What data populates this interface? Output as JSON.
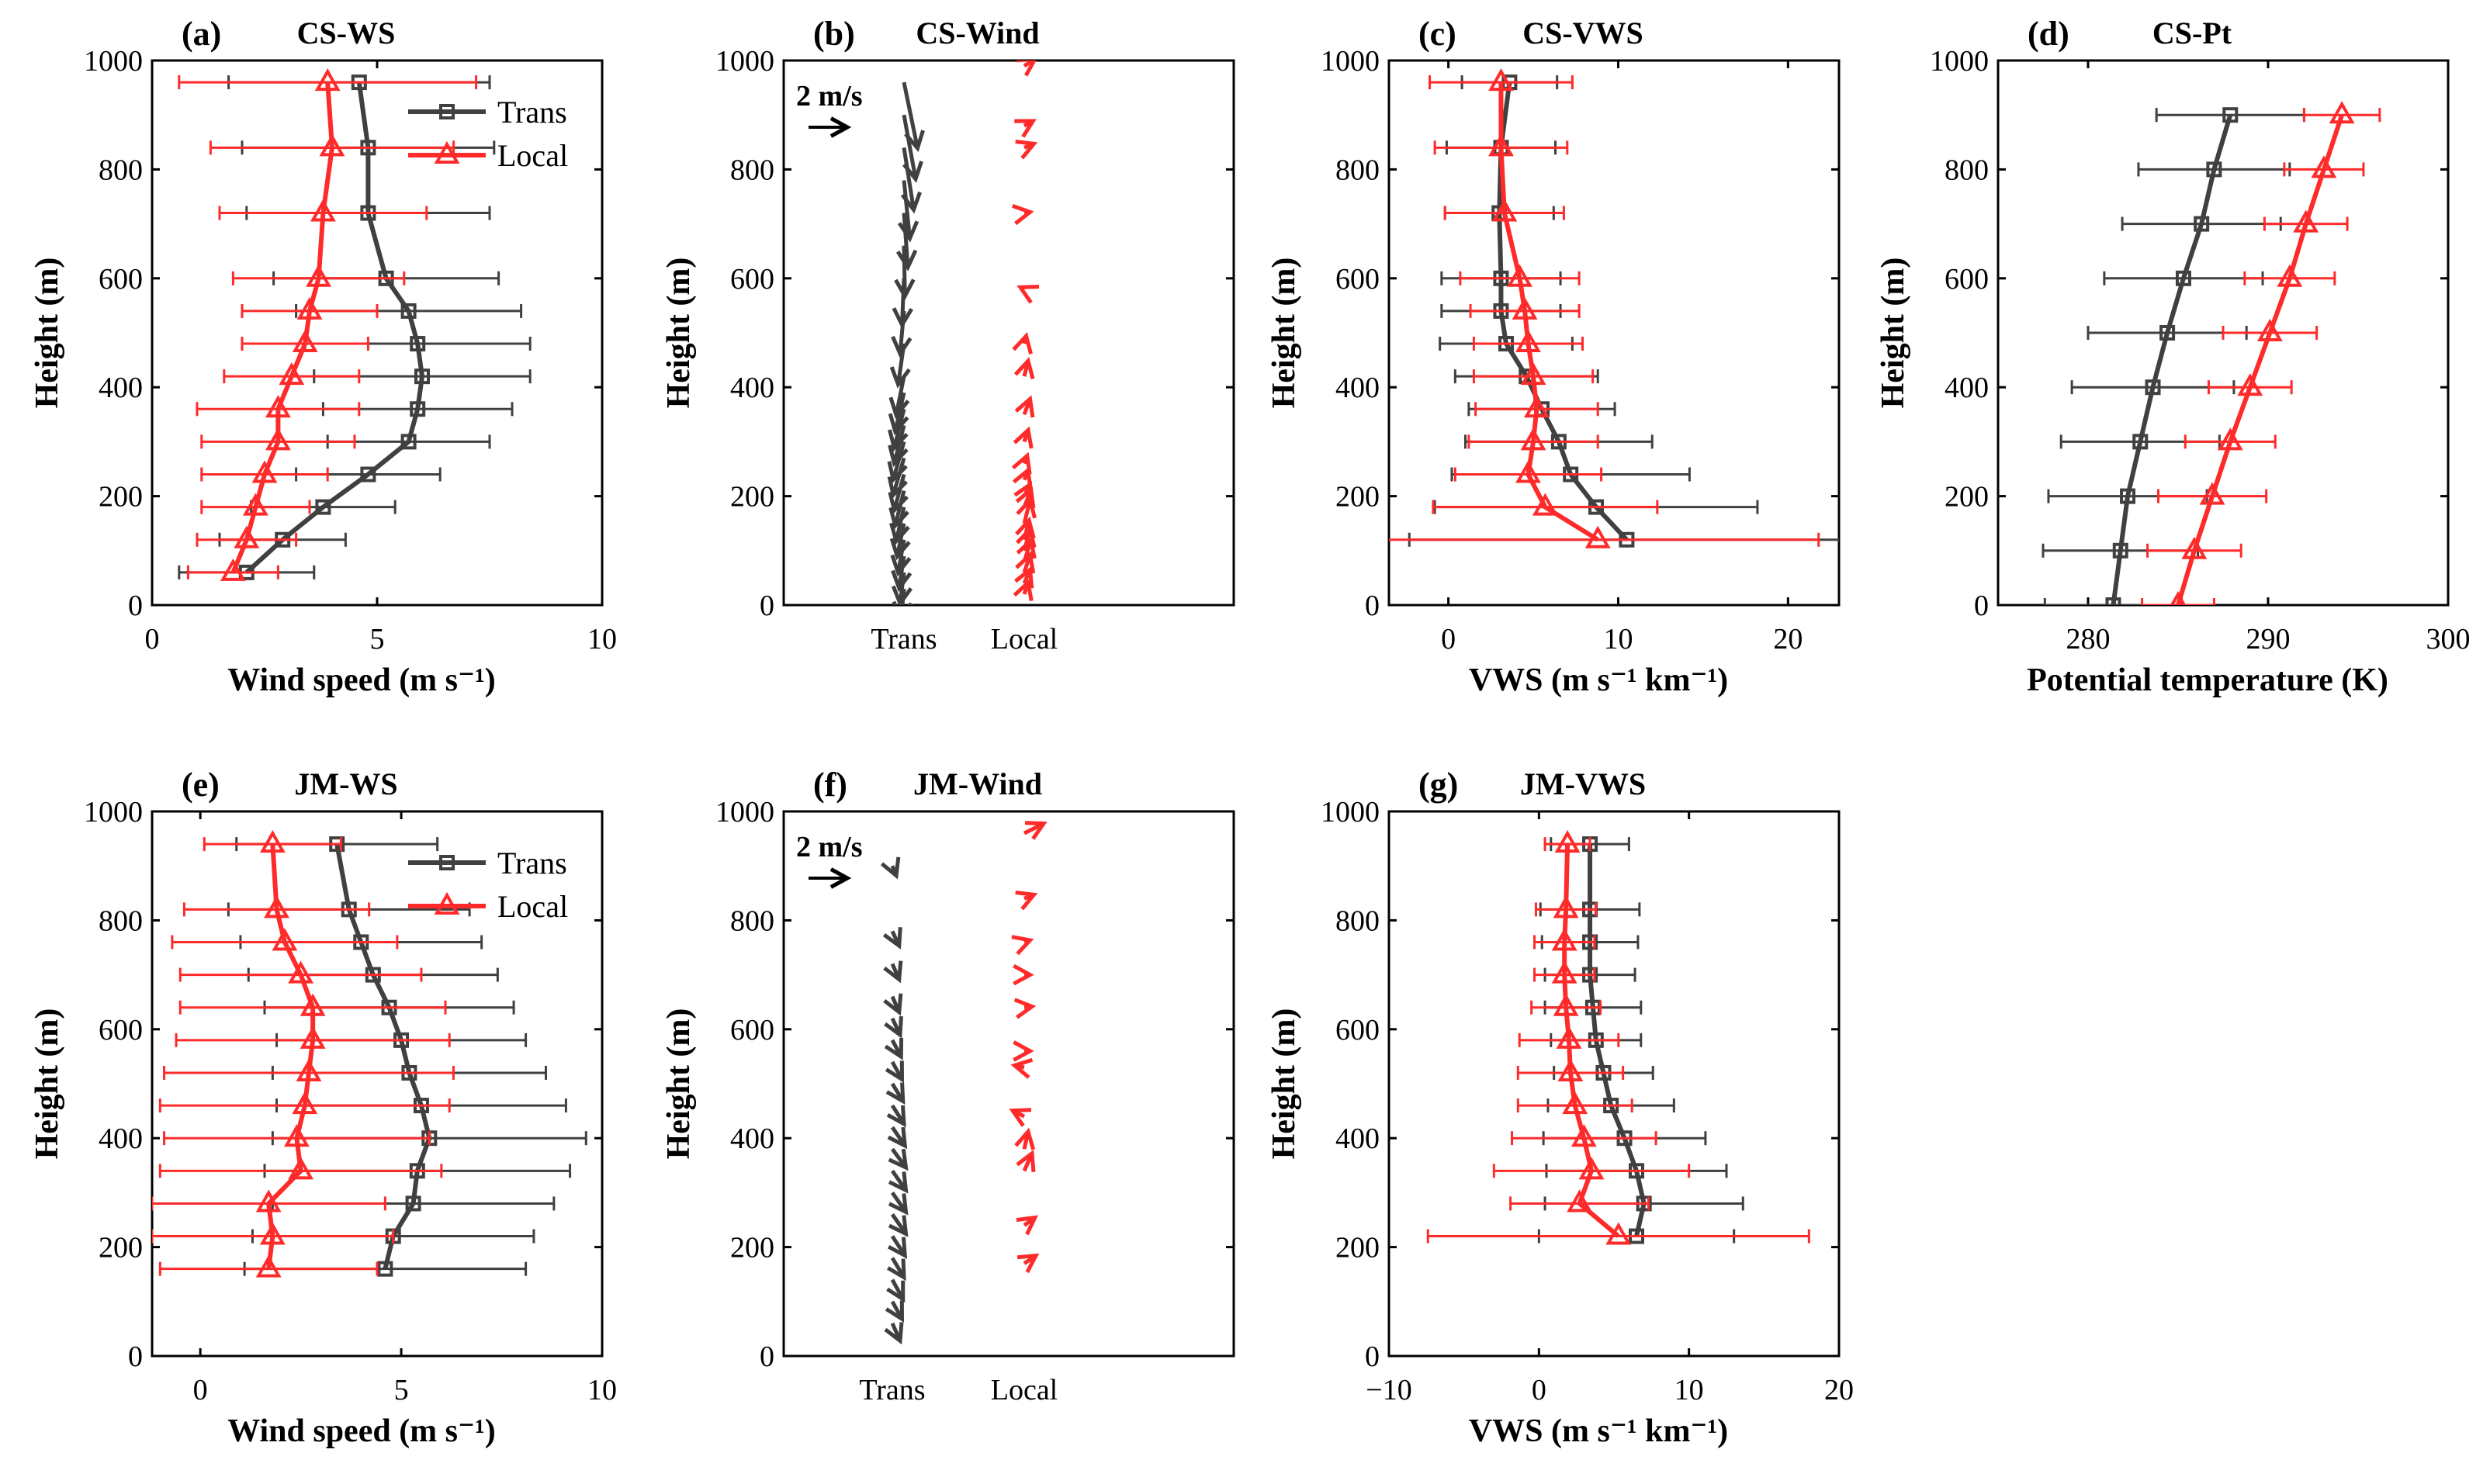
{
  "colors": {
    "trans": "#404040",
    "local": "#ff2a2a",
    "axis": "#000000"
  },
  "series_names": {
    "trans": "Trans",
    "local": "Local"
  },
  "chart_data": [
    {
      "id": "a",
      "type": "line",
      "letter": "(a)",
      "title": "CS-WS",
      "xlabel": "Wind speed (m s⁻¹)",
      "ylabel": "Height (m)",
      "xlim": [
        0,
        10
      ],
      "ylim": [
        0,
        1000
      ],
      "xticks": [
        0,
        5,
        10
      ],
      "xticklabels": [
        "0",
        "5",
        "10"
      ],
      "yticks": [
        0,
        200,
        400,
        600,
        800,
        1000
      ],
      "yticklabels": [
        "0",
        "200",
        "400",
        "600",
        "800",
        "1000"
      ],
      "legend": true,
      "series": [
        {
          "key": "trans",
          "heights": [
            60,
            120,
            180,
            240,
            300,
            360,
            420,
            480,
            540,
            600,
            720,
            840,
            960
          ],
          "values": [
            2.1,
            2.9,
            3.8,
            4.8,
            5.7,
            5.9,
            6.0,
            5.9,
            5.7,
            5.2,
            4.8,
            4.8,
            4.6
          ],
          "err": [
            1.5,
            1.4,
            1.6,
            1.6,
            1.8,
            2.1,
            2.4,
            2.5,
            2.5,
            2.5,
            2.7,
            2.8,
            2.9
          ]
        },
        {
          "key": "local",
          "heights": [
            60,
            120,
            180,
            240,
            300,
            360,
            420,
            480,
            540,
            600,
            720,
            840,
            960
          ],
          "values": [
            1.8,
            2.1,
            2.3,
            2.5,
            2.8,
            2.8,
            3.1,
            3.4,
            3.5,
            3.7,
            3.8,
            4.0,
            3.9
          ],
          "err": [
            1.0,
            1.1,
            1.2,
            1.4,
            1.7,
            1.8,
            1.5,
            1.4,
            1.5,
            1.9,
            2.3,
            2.7,
            3.3
          ]
        }
      ]
    },
    {
      "id": "b",
      "type": "barbs",
      "letter": "(b)",
      "title": "CS-Wind",
      "ylabel": "Height (m)",
      "ylim": [
        0,
        1000
      ],
      "yticks": [
        0,
        200,
        400,
        600,
        800,
        1000
      ],
      "yticklabels": [
        "0",
        "200",
        "400",
        "600",
        "800",
        "1000"
      ],
      "columns": [
        "Trans",
        "Local"
      ],
      "scale_label": "2 m/s",
      "series": [
        {
          "key": "trans",
          "heights": [
            0,
            30,
            60,
            90,
            120,
            150,
            180,
            210,
            240,
            270,
            300,
            330,
            360,
            390,
            420,
            480,
            540,
            600,
            660,
            720,
            780,
            840,
            900,
            960
          ],
          "u": [
            -0.1,
            -0.15,
            -0.2,
            -0.25,
            -0.3,
            -0.35,
            -0.4,
            -0.45,
            -0.5,
            -0.55,
            -0.55,
            -0.5,
            -0.5,
            -0.45,
            -0.4,
            -0.3,
            -0.2,
            -0.1,
            0.05,
            0.2,
            0.3,
            0.5,
            0.6,
            0.7
          ],
          "v": [
            -1.5,
            -1.55,
            -1.6,
            -1.65,
            -1.7,
            -1.7,
            -1.75,
            -1.8,
            -1.85,
            -1.9,
            -1.95,
            -1.95,
            -2.0,
            -2.0,
            -2.0,
            -2.1,
            -2.2,
            -2.4,
            -2.6,
            -2.8,
            -3.0,
            -3.2,
            -3.3,
            -3.4
          ]
        },
        {
          "key": "local",
          "heights": [
            20,
            40,
            60,
            80,
            100,
            120,
            150,
            180,
            200,
            230,
            260,
            300,
            350,
            420,
            480,
            580,
            720,
            840,
            880,
            990
          ],
          "u": [
            0.2,
            0.3,
            0.3,
            0.35,
            0.3,
            0.25,
            0.3,
            0.35,
            0.3,
            0.2,
            0.15,
            0.2,
            0.3,
            0.2,
            0.1,
            -0.2,
            0.3,
            0.5,
            0.45,
            0.55
          ],
          "v": [
            0.6,
            0.7,
            0.9,
            1.1,
            1.1,
            1.0,
            1.2,
            0.9,
            0.6,
            0.5,
            0.4,
            0.6,
            0.8,
            0.8,
            0.4,
            0.1,
            0.05,
            0.2,
            0.25,
            0.35
          ]
        }
      ]
    },
    {
      "id": "c",
      "type": "line",
      "letter": "(c)",
      "title": "CS-VWS",
      "xlabel": "VWS (m s⁻¹ km⁻¹)",
      "ylabel": "Height (m)",
      "xlim": [
        -3.5,
        23
      ],
      "ylim": [
        0,
        1000
      ],
      "xticks": [
        0,
        10,
        20
      ],
      "xticklabels": [
        "0",
        "10",
        "20"
      ],
      "yticks": [
        0,
        200,
        400,
        600,
        800,
        1000
      ],
      "yticklabels": [
        "0",
        "200",
        "400",
        "600",
        "800",
        "1000"
      ],
      "legend": false,
      "series": [
        {
          "key": "trans",
          "heights": [
            120,
            180,
            240,
            300,
            360,
            420,
            480,
            540,
            600,
            720,
            840,
            960
          ],
          "values": [
            10.5,
            8.7,
            7.2,
            6.5,
            5.5,
            4.6,
            3.4,
            3.1,
            3.1,
            3.0,
            3.1,
            3.6
          ],
          "err": [
            12.8,
            9.5,
            7.0,
            5.5,
            4.3,
            4.2,
            3.9,
            3.5,
            3.5,
            3.2,
            3.2,
            2.8
          ]
        },
        {
          "key": "local",
          "heights": [
            120,
            180,
            240,
            300,
            360,
            420,
            480,
            540,
            600,
            720,
            840,
            960
          ],
          "values": [
            8.8,
            5.7,
            4.7,
            5.0,
            5.2,
            5.0,
            4.7,
            4.5,
            4.2,
            3.3,
            3.1,
            3.1
          ],
          "err": [
            13.0,
            6.6,
            4.3,
            3.8,
            3.6,
            3.5,
            3.2,
            3.2,
            3.5,
            3.5,
            3.9,
            4.2
          ]
        }
      ]
    },
    {
      "id": "d",
      "type": "line",
      "letter": "(d)",
      "title": "CS-Pt",
      "xlabel": "Potential temperature (K)",
      "ylabel": "Height (m)",
      "xlim": [
        275,
        300
      ],
      "ylim": [
        0,
        1000
      ],
      "xticks": [
        280,
        290,
        300
      ],
      "xticklabels": [
        "280",
        "290",
        "300"
      ],
      "yticks": [
        0,
        200,
        400,
        600,
        800,
        1000
      ],
      "yticklabels": [
        "0",
        "200",
        "400",
        "600",
        "800",
        "1000"
      ],
      "legend": false,
      "series": [
        {
          "key": "trans",
          "heights": [
            0,
            100,
            200,
            300,
            400,
            500,
            600,
            700,
            800,
            900
          ],
          "values": [
            281.4,
            281.8,
            282.2,
            282.9,
            283.6,
            284.4,
            285.3,
            286.3,
            287.0,
            287.9
          ],
          "err": [
            3.8,
            4.3,
            4.4,
            4.4,
            4.5,
            4.4,
            4.4,
            4.4,
            4.2,
            4.1
          ]
        },
        {
          "key": "local",
          "heights": [
            0,
            100,
            200,
            300,
            400,
            500,
            600,
            700,
            800,
            900
          ],
          "values": [
            285.0,
            285.9,
            286.9,
            287.9,
            289.0,
            290.1,
            291.2,
            292.1,
            293.1,
            294.1
          ],
          "err": [
            2.0,
            2.6,
            3.0,
            2.5,
            2.3,
            2.6,
            2.5,
            2.3,
            2.2,
            2.1
          ]
        }
      ]
    },
    {
      "id": "e",
      "type": "line",
      "letter": "(e)",
      "title": "JM-WS",
      "xlabel": "Wind speed (m s⁻¹)",
      "ylabel": "Height (m)",
      "xlim": [
        -1.2,
        10
      ],
      "ylim": [
        0,
        1000
      ],
      "xticks": [
        0,
        5,
        10
      ],
      "xticklabels": [
        "0",
        "5",
        "10"
      ],
      "yticks": [
        0,
        200,
        400,
        600,
        800,
        1000
      ],
      "yticklabels": [
        "0",
        "200",
        "400",
        "600",
        "800",
        "1000"
      ],
      "legend": true,
      "series": [
        {
          "key": "trans",
          "heights": [
            160,
            220,
            280,
            340,
            400,
            460,
            520,
            580,
            640,
            700,
            760,
            820,
            940
          ],
          "values": [
            4.6,
            4.8,
            5.3,
            5.4,
            5.7,
            5.5,
            5.2,
            5.0,
            4.7,
            4.3,
            4.0,
            3.7,
            3.4
          ],
          "err": [
            3.5,
            3.5,
            3.5,
            3.8,
            3.9,
            3.6,
            3.4,
            3.1,
            3.1,
            3.1,
            3.0,
            3.0,
            2.5
          ]
        },
        {
          "key": "local",
          "heights": [
            160,
            220,
            280,
            340,
            400,
            460,
            520,
            580,
            640,
            700,
            760,
            820,
            940
          ],
          "values": [
            1.7,
            1.8,
            1.7,
            2.5,
            2.4,
            2.6,
            2.7,
            2.8,
            2.8,
            2.5,
            2.1,
            1.9,
            1.8
          ],
          "err": [
            2.7,
            3.0,
            2.9,
            3.5,
            3.3,
            3.6,
            3.6,
            3.4,
            3.3,
            3.0,
            2.8,
            2.3,
            1.7
          ]
        }
      ]
    },
    {
      "id": "f",
      "type": "barbs",
      "letter": "(f)",
      "title": "JM-Wind",
      "ylabel": "Height (m)",
      "ylim": [
        0,
        1000
      ],
      "yticks": [
        0,
        200,
        400,
        600,
        800,
        1000
      ],
      "yticklabels": [
        "0",
        "200",
        "400",
        "600",
        "800",
        "1000"
      ],
      "columns": [
        "Trans",
        "Local"
      ],
      "scale_label": "2 m/s",
      "series": [
        {
          "key": "trans",
          "heights": [
            60,
            100,
            140,
            180,
            220,
            260,
            300,
            340,
            380,
            420,
            460,
            500,
            540,
            580,
            620,
            660,
            720,
            780,
            900
          ],
          "u": [
            0.4,
            0.5,
            0.55,
            0.6,
            0.65,
            0.7,
            0.7,
            0.7,
            0.7,
            0.65,
            0.6,
            0.55,
            0.5,
            0.45,
            0.4,
            0.35,
            0.35,
            0.35,
            0.2
          ],
          "v": [
            -0.9,
            -0.9,
            -1.0,
            -1.0,
            -1.0,
            -1.0,
            -1.0,
            -1.0,
            -0.95,
            -0.95,
            -0.95,
            -0.9,
            -0.9,
            -0.85,
            -0.85,
            -0.8,
            -0.8,
            -0.75,
            -0.5
          ]
        },
        {
          "key": "local",
          "heights": [
            170,
            240,
            340,
            380,
            440,
            530,
            560,
            640,
            700,
            760,
            840,
            960
          ],
          "u": [
            0.6,
            0.55,
            0.4,
            0.2,
            -0.6,
            -0.5,
            0.3,
            0.4,
            0.3,
            0.3,
            0.5,
            1.0
          ],
          "v": [
            0.4,
            0.4,
            0.9,
            0.9,
            0.3,
            0.1,
            0.0,
            0.05,
            0.0,
            0.1,
            0.2,
            0.5
          ]
        }
      ]
    },
    {
      "id": "g",
      "type": "line",
      "letter": "(g)",
      "title": "JM-VWS",
      "xlabel": "VWS (m s⁻¹ km⁻¹)",
      "ylabel": "Height (m)",
      "xlim": [
        -10,
        20
      ],
      "ylim": [
        0,
        1000
      ],
      "xticks": [
        -10,
        0,
        10,
        20
      ],
      "xticklabels": [
        "−10",
        "0",
        "10",
        "20"
      ],
      "yticks": [
        0,
        200,
        400,
        600,
        800,
        1000
      ],
      "yticklabels": [
        "0",
        "200",
        "400",
        "600",
        "800",
        "1000"
      ],
      "legend": false,
      "series": [
        {
          "key": "trans",
          "heights": [
            220,
            280,
            340,
            400,
            460,
            520,
            580,
            640,
            700,
            760,
            820,
            940
          ],
          "values": [
            6.5,
            7.0,
            6.5,
            5.7,
            4.8,
            4.3,
            3.8,
            3.6,
            3.4,
            3.4,
            3.4,
            3.4
          ],
          "err": [
            6.5,
            6.6,
            6.0,
            5.4,
            4.2,
            3.3,
            3.0,
            3.2,
            3.0,
            3.2,
            3.3,
            2.6
          ]
        },
        {
          "key": "local",
          "heights": [
            220,
            280,
            340,
            400,
            460,
            520,
            580,
            640,
            700,
            760,
            820,
            940
          ],
          "values": [
            5.3,
            2.7,
            3.5,
            3.0,
            2.4,
            2.1,
            2.0,
            1.8,
            1.7,
            1.7,
            1.8,
            1.9
          ],
          "err": [
            12.7,
            4.6,
            6.5,
            4.8,
            3.8,
            3.5,
            3.3,
            2.3,
            2.0,
            2.0,
            2.0,
            1.5
          ]
        }
      ]
    }
  ]
}
